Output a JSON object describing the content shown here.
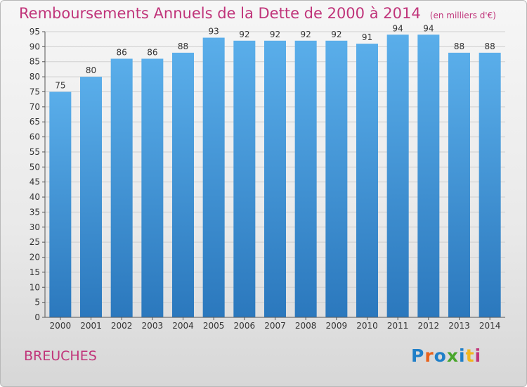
{
  "header": {
    "title": "Remboursements Annuels de la Dette de 2000 à 2014",
    "unit": "(en milliers d'€)"
  },
  "footer": {
    "commune": "BREUCHES",
    "logo_text": "Proxiti",
    "logo_colors": [
      "#1f7fc8",
      "#e8611a",
      "#1f7fc8",
      "#49a62c",
      "#1f7fc8",
      "#f2b61d",
      "#c0347a"
    ]
  },
  "colors": {
    "title": "#c0347a",
    "bar_top": "#5aaeea",
    "bar_bottom": "#2b78bd",
    "grid": "#cfcfcf",
    "axis": "#555555"
  },
  "chart_data": {
    "type": "bar",
    "title": "Remboursements Annuels de la Dette de 2000 à 2014",
    "subtitle": "(en milliers d'€)",
    "xlabel": "",
    "ylabel": "",
    "categories": [
      "2000",
      "2001",
      "2002",
      "2003",
      "2004",
      "2005",
      "2006",
      "2007",
      "2008",
      "2009",
      "2010",
      "2011",
      "2012",
      "2013",
      "2014"
    ],
    "values": [
      75,
      80,
      86,
      86,
      88,
      93,
      92,
      92,
      92,
      92,
      91,
      94,
      94,
      88,
      88
    ],
    "ylim": [
      0,
      95
    ],
    "yticks": [
      0,
      5,
      10,
      15,
      20,
      25,
      30,
      35,
      40,
      45,
      50,
      55,
      60,
      65,
      70,
      75,
      80,
      85,
      90,
      95
    ],
    "grid": true,
    "data_labels": true
  }
}
